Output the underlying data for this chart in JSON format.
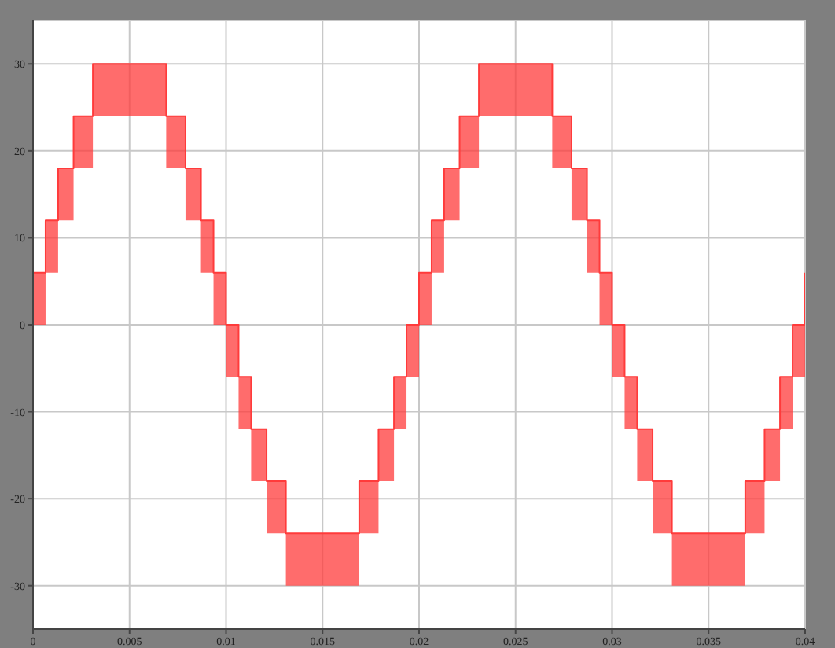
{
  "chart_data": {
    "type": "step",
    "xlim": [
      0,
      0.04
    ],
    "xticks": [
      0,
      0.005,
      0.01,
      0.015,
      0.02,
      0.025,
      0.03,
      0.035,
      0.04
    ],
    "ylim": [
      -35,
      35
    ],
    "yticks": [
      -30,
      -20,
      -10,
      0,
      10,
      20,
      30
    ],
    "grid": true,
    "legend": false,
    "marker": "none",
    "line_style": "solid",
    "series": [
      {
        "color": "#ff3b3b",
        "x": [
          0,
          0.00065,
          0.0013,
          0.0021,
          0.0031,
          0.0069,
          0.0079,
          0.0087,
          0.00935,
          0.01,
          0.01065,
          0.0113,
          0.0121,
          0.0131,
          0.0169,
          0.0179,
          0.0187,
          0.01935,
          0.02,
          0.02065,
          0.0213,
          0.0221,
          0.0231,
          0.0269,
          0.0279,
          0.0287,
          0.02935,
          0.03,
          0.03065,
          0.0313,
          0.0321,
          0.0331,
          0.0369,
          0.0379,
          0.0387,
          0.03935,
          0.04
        ],
        "values": [
          6,
          12,
          18,
          24,
          30,
          24,
          18,
          12,
          6,
          0,
          -6,
          -12,
          -18,
          -24,
          -18,
          -12,
          -6,
          0,
          6,
          12,
          18,
          24,
          30,
          24,
          18,
          12,
          6,
          0,
          -6,
          -12,
          -18,
          -24,
          -18,
          -12,
          -6,
          0,
          6
        ],
        "lower": [
          0,
          6,
          12,
          18,
          24,
          18,
          12,
          6,
          0,
          -6,
          -12,
          -18,
          -24,
          -30,
          -24,
          -18,
          -12,
          -6,
          0,
          6,
          12,
          18,
          24,
          18,
          12,
          6,
          0,
          -6,
          -12,
          -18,
          -24,
          -30,
          -24,
          -18,
          -12,
          -6,
          0
        ],
        "upper": [
          6,
          12,
          18,
          24,
          30,
          24,
          18,
          12,
          6,
          0,
          -6,
          -12,
          -18,
          -24,
          -18,
          -12,
          -6,
          0,
          6,
          12,
          18,
          24,
          30,
          24,
          18,
          12,
          6,
          0,
          -6,
          -12,
          -18,
          -24,
          -18,
          -12,
          -6,
          0,
          6
        ]
      }
    ]
  }
}
